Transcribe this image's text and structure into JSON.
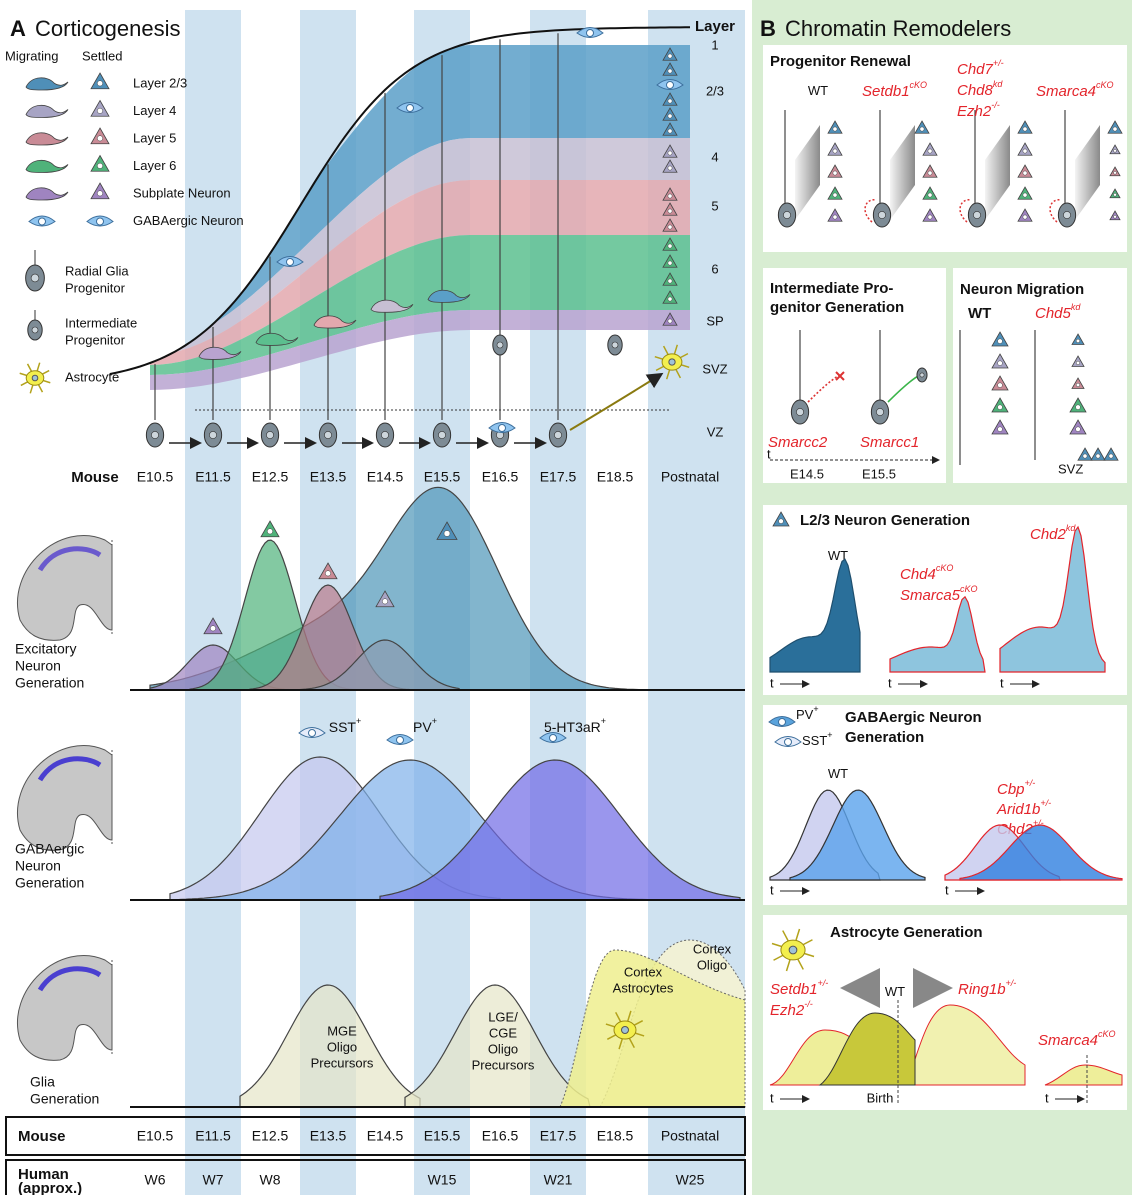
{
  "panel_a": {
    "letter": "A",
    "title": "Corticogenesis",
    "legend": {
      "headers": [
        "Migrating",
        "Settled"
      ],
      "neurons": [
        "Layer 2/3",
        "Layer 4",
        "Layer 5",
        "Layer 6",
        "Subplate Neuron",
        "GABAergic Neuron"
      ],
      "progenitors": [
        [
          "Radial Glia",
          "Progenitor"
        ],
        [
          "Intermediate",
          "Progenitor"
        ],
        [
          "Astrocyte"
        ]
      ]
    },
    "zones": [
      "Layer",
      "1",
      "2/3",
      "4",
      "5",
      "6",
      "SP",
      "SVZ",
      "VZ"
    ],
    "mouse_label": "Mouse",
    "stages": [
      "E10.5",
      "E11.5",
      "E12.5",
      "E13.5",
      "E14.5",
      "E15.5",
      "E16.5",
      "E17.5",
      "E18.5",
      "Postnatal"
    ],
    "excitatory": {
      "label": [
        "Excitatory",
        "Neuron",
        "Generation"
      ]
    },
    "gabaergic": {
      "label": [
        "GABAergic",
        "Neuron",
        "Generation"
      ],
      "peaks": [
        {
          "name": "SST",
          "sup": "+"
        },
        {
          "name": "PV",
          "sup": "+"
        },
        {
          "name": "5-HT3aR",
          "sup": "+"
        }
      ]
    },
    "glia": {
      "label": [
        "Glia",
        "Generation"
      ],
      "regions": [
        [
          "MGE",
          "Oligo",
          "Precursors"
        ],
        [
          "LGE/",
          "CGE",
          "Oligo",
          "Precursors"
        ],
        [
          "Cortex",
          "Astrocytes"
        ],
        [
          "Cortex",
          "Oligo"
        ]
      ]
    },
    "human": {
      "label": [
        "Human",
        "(approx.)"
      ],
      "values": [
        "W6",
        "W7",
        "W8",
        null,
        null,
        "W15",
        null,
        "W21",
        null,
        "W25"
      ]
    }
  },
  "panel_b": {
    "letter": "B",
    "title": "Chromatin Remodelers",
    "progenitor_renewal": {
      "title": "Progenitor Renewal",
      "conditions": [
        [
          {
            "name": "WT"
          }
        ],
        [
          {
            "name": "Setdb1",
            "sup": "cKO"
          }
        ],
        [
          {
            "name": "Chd7",
            "sup": "+/-"
          },
          {
            "name": "Chd8",
            "sup": "kd"
          },
          {
            "name": "Ezh2",
            "sup": "-/-"
          }
        ],
        [
          {
            "name": "Smarca4",
            "sup": "cKO"
          }
        ]
      ]
    },
    "intermediate": {
      "title": [
        "Intermediate Pro-",
        "genitor Generation"
      ],
      "genes": [
        "Smarcc2",
        "Smarcc1"
      ],
      "axis": "t",
      "times": [
        "E14.5",
        "E15.5"
      ]
    },
    "migration": {
      "title": "Neuron Migration",
      "conditions": [
        {
          "name": "WT"
        },
        {
          "name": "Chd5",
          "sup": "kd"
        }
      ],
      "zone": "SVZ"
    },
    "l23": {
      "title": "L2/3 Neuron Generation",
      "conditions": [
        [
          {
            "name": "WT"
          }
        ],
        [
          {
            "name": "Chd4",
            "sup": "cKO"
          },
          {
            "name": "Smarca5",
            "sup": "cKO"
          }
        ],
        [
          {
            "name": "Chd2",
            "sup": "kd"
          }
        ]
      ],
      "axis": "t"
    },
    "gaba": {
      "legend": [
        {
          "name": "PV",
          "sup": "+"
        },
        {
          "name": "SST",
          "sup": "+"
        }
      ],
      "title": [
        "GABAergic Neuron",
        "Generation"
      ],
      "conditions": [
        [
          {
            "name": "WT"
          }
        ],
        [
          {
            "name": "Cbp",
            "sup": "+/-"
          },
          {
            "name": "Arid1b",
            "sup": "+/-"
          },
          {
            "name": "Chd2",
            "sup": "+/-"
          }
        ]
      ],
      "axis": "t"
    },
    "astro": {
      "title": "Astrocyte Generation",
      "conditions": [
        [
          {
            "name": "Setdb1",
            "sup": "+/-"
          },
          {
            "name": "Ezh2",
            "sup": "-/-"
          }
        ],
        [
          {
            "name": "WT"
          }
        ],
        [
          {
            "name": "Ring1b",
            "sup": "+/-"
          }
        ],
        [
          {
            "name": "Smarca4",
            "sup": "cKO"
          }
        ]
      ],
      "birth": "Birth",
      "axis": "t"
    }
  }
}
